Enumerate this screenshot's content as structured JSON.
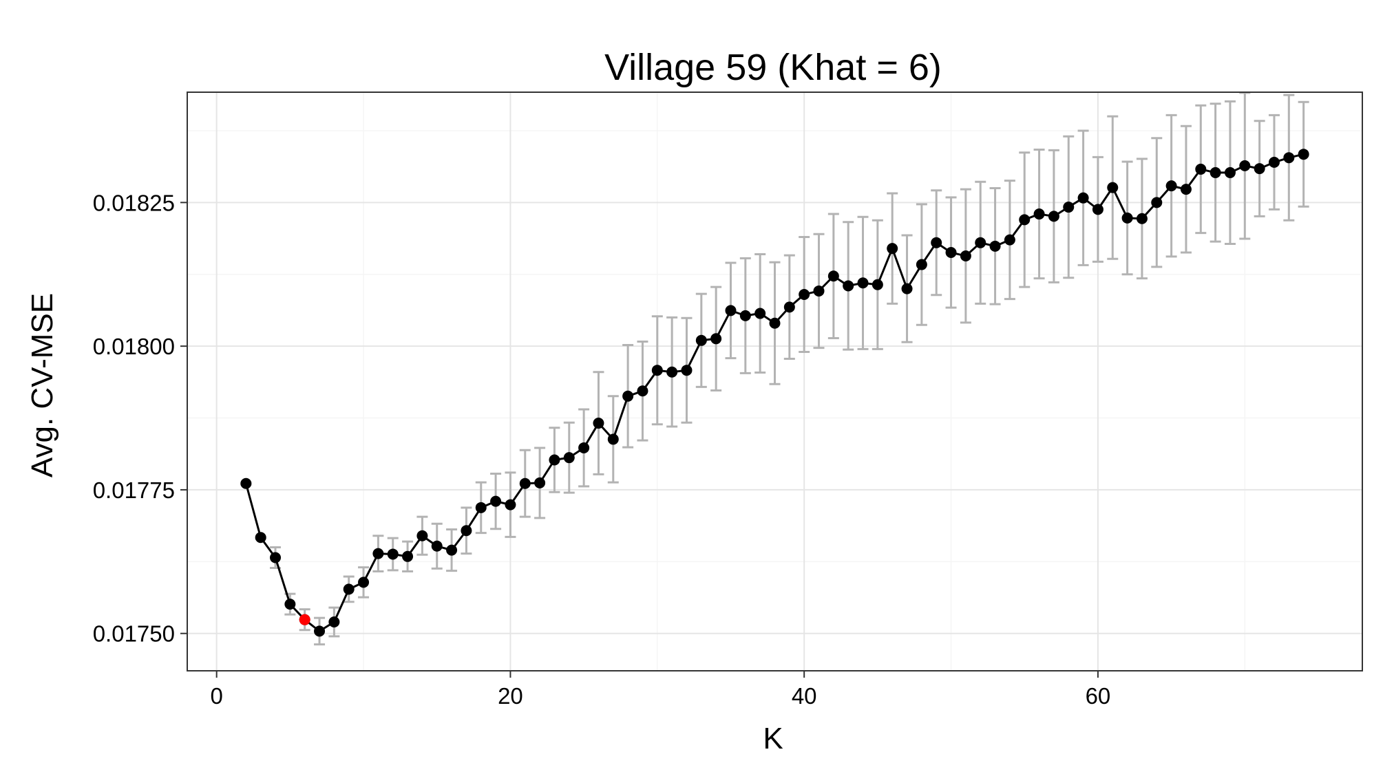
{
  "chart_data": {
    "type": "line",
    "title": "Village 59 (Khat = 6)",
    "xlabel": "K",
    "ylabel": "Avg. CV-MSE",
    "xlim": [
      -2,
      78
    ],
    "ylim": [
      0.017435,
      0.018442
    ],
    "x_ticks": [
      0,
      20,
      40,
      60
    ],
    "x_tick_labels": [
      "0",
      "20",
      "40",
      "60"
    ],
    "y_ticks": [
      0.0175,
      0.01775,
      0.018,
      0.01825
    ],
    "y_tick_labels": [
      "0.01750",
      "0.01775",
      "0.01800",
      "0.01825"
    ],
    "grid": true,
    "theme": "bw",
    "highlight": {
      "x": 6,
      "color": "#ff0000"
    },
    "colors": {
      "line": "#000000",
      "points": "#000000",
      "errorbar": "#b3b3b3",
      "highlight": "#ff0000",
      "panel_border": "#333333",
      "grid_major": "#e5e5e5",
      "grid_minor": "#f5f5f5"
    },
    "series": [
      {
        "x": [
          2,
          3,
          4,
          5,
          6,
          7,
          8,
          9,
          10,
          11,
          12,
          13,
          14,
          15,
          16,
          17,
          18,
          19,
          20,
          21,
          22,
          23,
          24,
          25,
          26,
          27,
          28,
          29,
          30,
          31,
          32,
          33,
          34,
          35,
          36,
          37,
          38,
          39,
          40,
          41,
          42,
          43,
          44,
          45,
          46,
          47,
          48,
          49,
          50,
          51,
          52,
          53,
          54,
          55,
          56,
          57,
          58,
          59,
          60,
          61,
          62,
          63,
          64,
          65,
          66,
          67,
          68,
          69,
          70,
          71,
          72,
          73,
          74
        ],
        "y": [
          0.017761,
          0.017667,
          0.017632,
          0.017551,
          0.017524,
          0.017504,
          0.01752,
          0.017577,
          0.017589,
          0.017639,
          0.017638,
          0.017634,
          0.01767,
          0.017652,
          0.017645,
          0.017679,
          0.017719,
          0.01773,
          0.017724,
          0.017761,
          0.017762,
          0.017802,
          0.017806,
          0.017823,
          0.017866,
          0.017838,
          0.017913,
          0.017922,
          0.017958,
          0.017955,
          0.017958,
          0.01801,
          0.018013,
          0.018062,
          0.018053,
          0.018057,
          0.01804,
          0.018068,
          0.01809,
          0.018096,
          0.018122,
          0.018105,
          0.01811,
          0.018107,
          0.01817,
          0.0181,
          0.018142,
          0.01818,
          0.018163,
          0.018157,
          0.01818,
          0.018174,
          0.018185,
          0.01822,
          0.01823,
          0.018226,
          0.018242,
          0.018258,
          0.018238,
          0.018276,
          0.018223,
          0.018222,
          0.01825,
          0.018279,
          0.018273,
          0.018308,
          0.018302,
          0.018302,
          0.018314,
          0.018309,
          0.01832,
          0.018328,
          0.018334
        ],
        "error": [
          1.5e-06,
          1.5e-06,
          1.8e-05,
          1.8e-05,
          1.8e-05,
          2.3e-05,
          2.5e-05,
          2.2e-05,
          2.6e-05,
          3.1e-05,
          2.8e-05,
          2.6e-05,
          3.3e-05,
          3.9e-05,
          3.6e-05,
          4e-05,
          4.4e-05,
          4.8e-05,
          5.6e-05,
          5.8e-05,
          6.1e-05,
          5.6e-05,
          6.1e-05,
          6.7e-05,
          8.9e-05,
          7.5e-05,
          8.9e-05,
          8.6e-05,
          9.4e-05,
          9.5e-05,
          9.1e-05,
          8.1e-05,
          9e-05,
          8.3e-05,
          0.0001,
          0.000103,
          0.000106,
          9e-05,
          0.0001,
          9.9e-05,
          0.000108,
          0.000111,
          0.000115,
          0.000112,
          9.6e-05,
          9.3e-05,
          0.000105,
          9.1e-05,
          9.6e-05,
          0.000116,
          0.000106,
          0.000101,
          0.000103,
          0.000117,
          0.000112,
          0.000115,
          0.000123,
          0.000117,
          9.1e-05,
          0.000124,
          9.8e-05,
          0.000104,
          0.000112,
          0.000123,
          0.00011,
          0.000111,
          0.00012,
          0.000124,
          0.000127,
          8.3e-05,
          8.2e-05,
          0.000109,
          9.1e-05
        ]
      }
    ]
  }
}
